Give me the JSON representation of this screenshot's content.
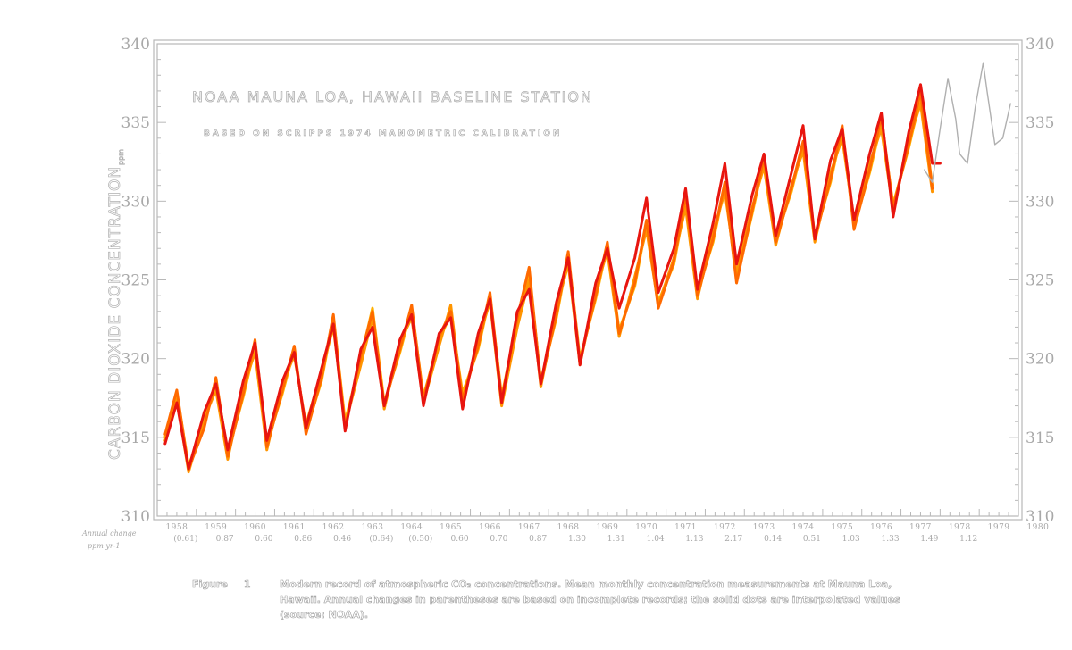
{
  "chart_data": {
    "type": "line",
    "title": "NOAA MAUNA LOA, HAWAII BASELINE STATION",
    "subtitle": "BASED ON SCRIPPS 1974 MANOMETRIC CALIBRATION",
    "ylabel": "CARBON DIOXIDE CONCENTRATION",
    "yunit": "ppm",
    "ylim": [
      310,
      340
    ],
    "yticks": [
      310,
      315,
      320,
      325,
      330,
      335,
      340
    ],
    "xlim": [
      1958,
      1980
    ],
    "xticks": [
      "1958",
      "1959",
      "1960",
      "1961",
      "1962",
      "1963",
      "1964",
      "1965",
      "1966",
      "1967",
      "1968",
      "1969",
      "1970",
      "1971",
      "1972",
      "1973",
      "1974",
      "1975",
      "1976",
      "1977",
      "1978",
      "1979",
      "1980"
    ],
    "annual_change_label": "Annual change",
    "annual_change_unit": "ppm yr-1",
    "annual_changes": [
      "(0.61)",
      "0.87",
      "0.60",
      "0.86",
      "0.46",
      "(0.64)",
      "(0.50)",
      "0.60",
      "0.70",
      "0.87",
      "1.30",
      "1.31",
      "1.04",
      "1.13",
      "2.17",
      "0.14",
      "0.51",
      "1.03",
      "1.33",
      "1.49",
      "1.12"
    ],
    "grid": false,
    "series": [
      {
        "x": [
          1958.2,
          1958.5,
          1958.8,
          1959.2,
          1959.5,
          1959.8,
          1960.2,
          1960.5,
          1960.8,
          1961.2,
          1961.5,
          1961.8,
          1962.2,
          1962.5,
          1962.8,
          1963.2,
          1963.5,
          1963.8,
          1964.2,
          1964.5,
          1964.8,
          1965.2,
          1965.5,
          1965.8,
          1966.2,
          1966.5,
          1966.8,
          1967.2,
          1967.5,
          1967.8,
          1968.2,
          1968.5,
          1968.8,
          1969.2,
          1969.5,
          1969.8,
          1970.2,
          1970.5,
          1970.8,
          1971.2,
          1971.5,
          1971.8,
          1972.2,
          1972.5,
          1972.8,
          1973.2,
          1973.5,
          1973.8,
          1974.2,
          1974.5,
          1974.8,
          1975.2,
          1975.5,
          1975.8,
          1976.2,
          1976.5,
          1976.8,
          1977.2,
          1977.5,
          1977.8
        ],
        "values": [
          315.0,
          317.8,
          313.2,
          315.8,
          318.6,
          314.0,
          317.6,
          320.8,
          314.6,
          317.8,
          320.6,
          315.4,
          318.6,
          322.6,
          316.0,
          320.0,
          323.2,
          317.2,
          320.4,
          323.2,
          317.6,
          321.2,
          322.8,
          317.8,
          320.6,
          324.0,
          317.6,
          322.4,
          325.4,
          318.6,
          322.6,
          326.6,
          320.0,
          323.8,
          327.2,
          321.8,
          324.6,
          328.6,
          323.6,
          326.0,
          330.0,
          324.2,
          327.4,
          331.0,
          325.0,
          329.2,
          332.6,
          327.6,
          330.6,
          333.6,
          327.8,
          331.2,
          334.6,
          328.4,
          331.8,
          335.0,
          329.8,
          333.4,
          336.6,
          331.0
        ]
      },
      {
        "x": [
          1958.2,
          1958.5,
          1958.8,
          1959.2,
          1959.5,
          1959.8,
          1960.2,
          1960.5,
          1960.8,
          1961.2,
          1961.5,
          1961.8,
          1962.2,
          1962.5,
          1962.8,
          1963.2,
          1963.5,
          1963.8,
          1964.2,
          1964.5,
          1964.8,
          1965.2,
          1965.5,
          1965.8,
          1966.2,
          1966.5,
          1966.8,
          1967.2,
          1967.5,
          1967.8,
          1968.2,
          1968.5,
          1968.8,
          1969.2,
          1969.5,
          1969.8,
          1970.2,
          1970.5,
          1970.8,
          1971.2,
          1971.5,
          1971.8,
          1972.2,
          1972.5,
          1972.8,
          1973.2,
          1973.5,
          1973.8,
          1974.2,
          1974.5,
          1974.8,
          1975.2,
          1975.5,
          1975.8,
          1976.2,
          1976.5,
          1976.8,
          1977.2,
          1977.5,
          1977.8
        ],
        "values": [
          314.8,
          317.4,
          312.8,
          316.2,
          318.0,
          313.6,
          318.2,
          320.4,
          314.2,
          318.4,
          320.2,
          315.8,
          319.2,
          322.0,
          315.8,
          319.6,
          322.6,
          316.8,
          321.0,
          322.6,
          317.2,
          320.8,
          323.4,
          317.2,
          321.2,
          323.6,
          317.0,
          322.0,
          325.0,
          318.2,
          323.2,
          326.0,
          319.6,
          324.4,
          326.8,
          321.4,
          325.2,
          328.2,
          323.4,
          326.4,
          329.6,
          323.8,
          328.0,
          330.6,
          325.4,
          329.6,
          332.2,
          327.2,
          331.0,
          333.2,
          327.4,
          331.8,
          334.0,
          328.8,
          332.4,
          334.6,
          329.4,
          333.8,
          336.2,
          330.6
        ]
      },
      {
        "x": [
          1958.2,
          1958.5,
          1958.8,
          1959.2,
          1959.5,
          1959.8,
          1960.2,
          1960.5,
          1960.8,
          1961.2,
          1961.5,
          1961.8,
          1962.2,
          1962.5,
          1962.8,
          1963.2,
          1963.5,
          1963.8,
          1964.2,
          1964.5,
          1964.8,
          1965.2,
          1965.5,
          1965.8,
          1966.2,
          1966.5,
          1966.8,
          1967.2,
          1967.5,
          1967.8,
          1968.2,
          1968.5,
          1968.8,
          1969.2,
          1969.5,
          1969.8,
          1970.2,
          1970.5,
          1970.8,
          1971.2,
          1971.5,
          1971.8,
          1972.2,
          1972.5,
          1972.8,
          1973.2,
          1973.5,
          1973.8,
          1974.2,
          1974.5,
          1974.8,
          1975.2,
          1975.5,
          1975.8,
          1976.2,
          1976.5,
          1976.8,
          1977.2,
          1977.5,
          1977.8
        ],
        "values": [
          315.2,
          318.0,
          313.0,
          315.6,
          318.8,
          313.8,
          317.8,
          321.2,
          314.4,
          318.0,
          320.8,
          315.2,
          318.8,
          322.8,
          315.6,
          320.2,
          323.0,
          317.0,
          320.6,
          323.4,
          317.4,
          321.4,
          323.0,
          317.4,
          320.8,
          324.2,
          317.4,
          322.6,
          325.8,
          318.4,
          322.8,
          326.8,
          319.8,
          324.0,
          327.4,
          321.6,
          324.8,
          328.8,
          323.2,
          326.2,
          330.4,
          324.0,
          327.6,
          331.2,
          324.8,
          329.4,
          332.8,
          327.4,
          330.8,
          333.8,
          327.6,
          331.4,
          334.8,
          328.2,
          332.0,
          335.4,
          329.6,
          333.6,
          337.0,
          330.8
        ]
      },
      {
        "x": [
          1958.2,
          1958.5,
          1958.8,
          1959.2,
          1959.5,
          1959.8,
          1960.2,
          1960.5,
          1960.8,
          1961.2,
          1961.5,
          1961.8,
          1962.2,
          1962.5,
          1962.8,
          1963.2,
          1963.5,
          1963.8,
          1964.2,
          1964.5,
          1964.8,
          1965.2,
          1965.5,
          1965.8,
          1966.2,
          1966.5,
          1966.8,
          1967.2,
          1967.5,
          1967.8,
          1968.2,
          1968.5,
          1968.8,
          1969.2,
          1969.5,
          1969.8,
          1970.2,
          1970.5,
          1970.8,
          1971.2,
          1971.5,
          1971.8,
          1972.2,
          1972.5,
          1972.8,
          1973.2,
          1973.5,
          1973.8,
          1974.2,
          1974.5,
          1974.8,
          1975.2,
          1975.5,
          1975.8,
          1976.2,
          1976.5,
          1976.8,
          1977.2,
          1977.5,
          1977.8,
          1978.0
        ],
        "values": [
          314.6,
          317.2,
          313.0,
          316.6,
          318.4,
          314.2,
          318.6,
          321.0,
          314.8,
          318.6,
          320.4,
          315.6,
          319.4,
          322.2,
          315.4,
          320.6,
          322.0,
          317.0,
          321.2,
          322.8,
          317.0,
          321.6,
          322.6,
          316.8,
          321.6,
          323.8,
          317.2,
          323.0,
          324.4,
          318.4,
          323.6,
          326.4,
          319.6,
          324.8,
          327.0,
          323.2,
          326.4,
          330.2,
          324.2,
          327.0,
          330.8,
          324.4,
          328.6,
          332.4,
          326.0,
          330.4,
          333.0,
          327.8,
          331.8,
          334.8,
          327.6,
          332.6,
          334.6,
          328.8,
          333.0,
          335.6,
          329.0,
          334.4,
          337.4,
          332.4,
          332.4
        ]
      },
      {
        "x": [
          1977.6,
          1977.8,
          1978.0,
          1978.2,
          1978.4,
          1978.5,
          1978.7,
          1978.9,
          1979.1,
          1979.2,
          1979.4,
          1979.6,
          1979.8
        ],
        "values": [
          332.0,
          331.2,
          334.6,
          337.8,
          335.2,
          333.0,
          332.4,
          336.0,
          338.8,
          337.0,
          333.6,
          334.0,
          336.2
        ]
      }
    ],
    "series_colors": [
      "#ffb000",
      "#ff9500",
      "#ff6a00",
      "#e8150f",
      "#b0b0b0"
    ]
  },
  "caption": {
    "figure_label": "Figure",
    "figure_number": "1",
    "text": "Modern record of atmospheric CO₂ concentrations. Mean monthly concentration measurements at Mauna Loa, Hawaii. Annual changes in parentheses are based on incomplete records; the solid dots are interpolated values (source: NOAA)."
  }
}
